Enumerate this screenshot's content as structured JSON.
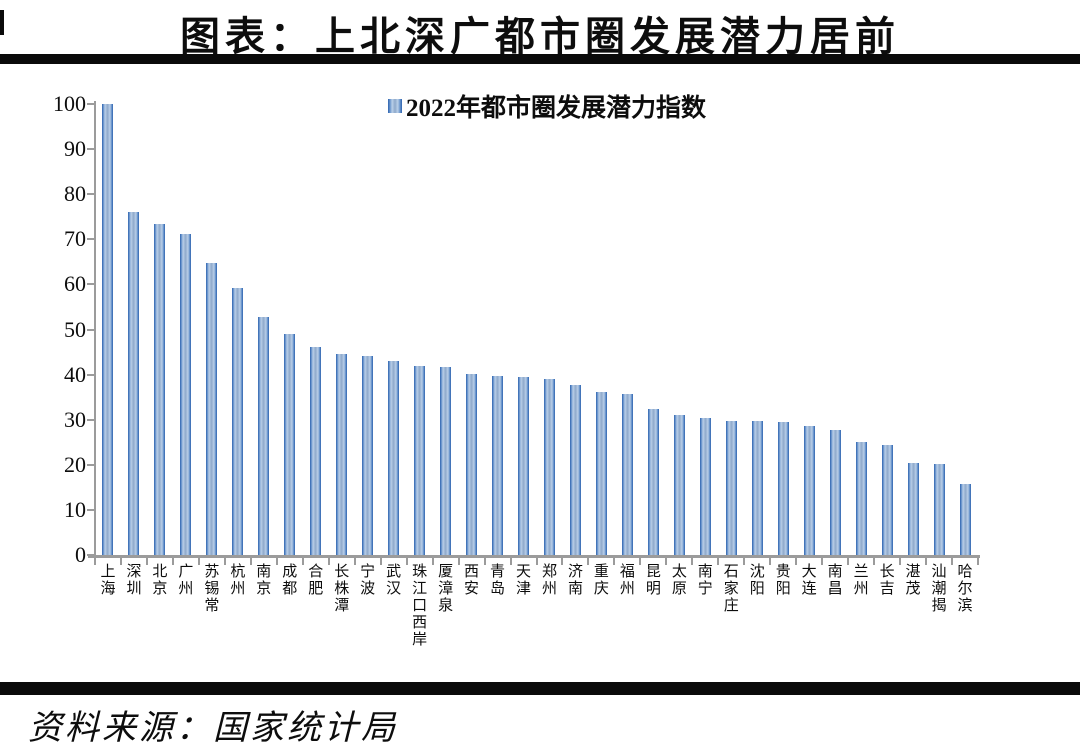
{
  "title": "图表：上北深广都市圈发展潜力居前",
  "legend": {
    "label": "2022年都市圈发展潜力指数"
  },
  "source": "资料来源：国家统计局",
  "colors": {
    "bar_edge": "#2f63ae",
    "bar_highlight": "#b9cfe8",
    "bar_center": "#8fa9cb",
    "axis": "#9b9b9b",
    "text": "#0d0d0d",
    "divider": "#0a0a0a"
  },
  "chart_data": {
    "type": "bar",
    "title": "图表：上北深广都市圈发展潜力居前",
    "legend": [
      "2022年都市圈发展潜力指数"
    ],
    "legend_position": "top-center",
    "grid": false,
    "xlabel": "",
    "ylabel": "",
    "ylim": [
      0,
      100
    ],
    "ytick_interval": 10,
    "ytick_labels": [
      "0",
      "10",
      "20",
      "30",
      "40",
      "50",
      "60",
      "70",
      "80",
      "90",
      "100"
    ],
    "categories": [
      "上海",
      "深圳",
      "北京",
      "广州",
      "苏锡常",
      "杭州",
      "南京",
      "成都",
      "合肥",
      "长株潭",
      "宁波",
      "武汉",
      "珠江口西岸",
      "厦漳泉",
      "西安",
      "青岛",
      "天津",
      "郑州",
      "济南",
      "重庆",
      "福州",
      "昆明",
      "太原",
      "南宁",
      "石家庄",
      "沈阳",
      "贵阳",
      "大连",
      "南昌",
      "兰州",
      "长吉",
      "湛茂",
      "汕潮揭",
      "哈尔滨"
    ],
    "values": [
      100,
      76.0,
      73.4,
      71.1,
      64.8,
      59.2,
      52.8,
      49.0,
      46.1,
      44.6,
      44.2,
      43.1,
      41.9,
      41.7,
      40.1,
      39.7,
      39.5,
      39.0,
      37.7,
      36.2,
      35.7,
      32.4,
      31.1,
      30.4,
      29.8,
      29.7,
      29.5,
      28.6,
      27.7,
      25.1,
      24.4,
      20.3,
      20.2,
      15.7
    ]
  }
}
